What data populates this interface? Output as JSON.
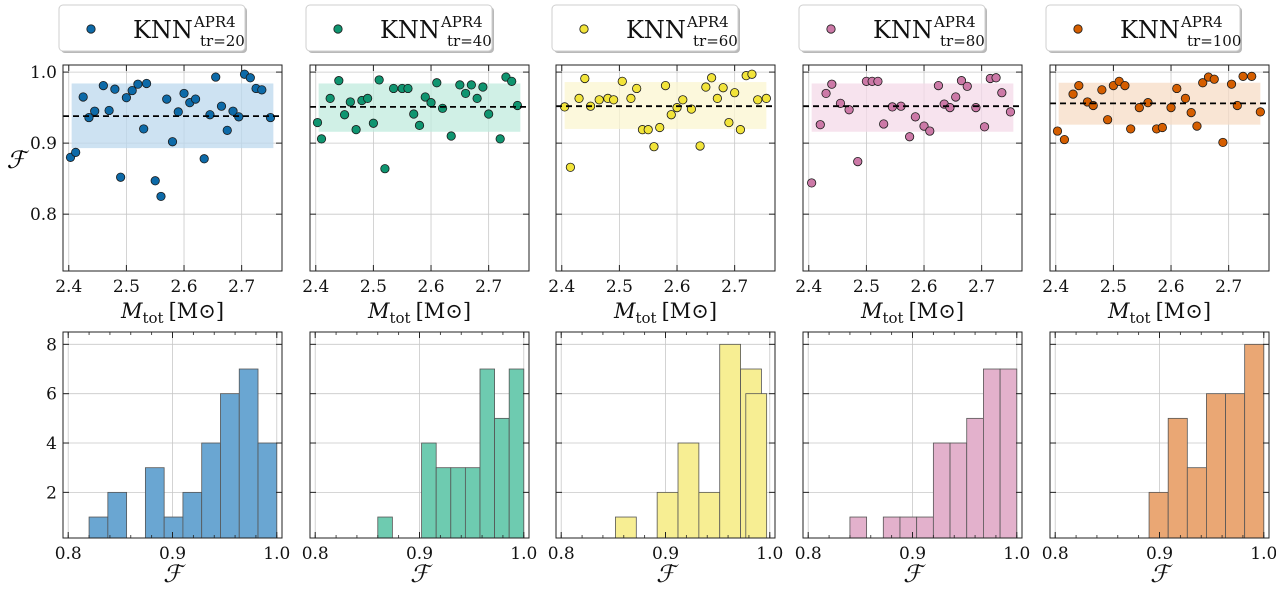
{
  "figure": {
    "y_label_top": "ℱ",
    "x_label_bottom": "ℱ",
    "x_label_top_main": "M",
    "x_label_top_sub": "tot",
    "x_label_top_unit": "[M⊙]"
  },
  "chart_data": [
    {
      "type": "scatter",
      "name": "KNN_tr20_scatter",
      "legend": {
        "base": "KNN",
        "sup": "APR4",
        "sub": "tr=20"
      },
      "color": "#0d6aa8",
      "band_color": "#bcd8ee",
      "xlim": [
        2.39,
        2.77
      ],
      "ylim": [
        0.72,
        1.01
      ],
      "xticks": [
        2.4,
        2.5,
        2.6,
        2.7
      ],
      "xtick_labels": [
        "2.4",
        "2.5",
        "2.6",
        "2.7"
      ],
      "yticks": [
        0.8,
        0.9,
        1.0
      ],
      "ytick_labels": [
        "0.8",
        "0.9",
        "1.0"
      ],
      "mean": 0.938,
      "band": [
        0.893,
        0.984
      ],
      "x": [
        2.403,
        2.412,
        2.425,
        2.435,
        2.445,
        2.46,
        2.47,
        2.48,
        2.49,
        2.5,
        2.51,
        2.52,
        2.53,
        2.535,
        2.55,
        2.56,
        2.57,
        2.58,
        2.59,
        2.6,
        2.61,
        2.62,
        2.635,
        2.645,
        2.655,
        2.665,
        2.675,
        2.685,
        2.695,
        2.705,
        2.715,
        2.725,
        2.735,
        2.75
      ],
      "y": [
        0.88,
        0.887,
        0.965,
        0.936,
        0.945,
        0.981,
        0.946,
        0.976,
        0.852,
        0.964,
        0.974,
        0.983,
        0.92,
        0.984,
        0.847,
        0.825,
        0.962,
        0.902,
        0.944,
        0.97,
        0.957,
        0.962,
        0.878,
        0.94,
        0.993,
        0.952,
        0.918,
        0.945,
        0.937,
        0.997,
        0.992,
        0.977,
        0.975,
        0.936
      ]
    },
    {
      "type": "scatter",
      "name": "KNN_tr40_scatter",
      "legend": {
        "base": "KNN",
        "sup": "APR4",
        "sub": "tr=40"
      },
      "color": "#0f9570",
      "band_color": "#c0ebde",
      "xlim": [
        2.39,
        2.77
      ],
      "ylim": [
        0.72,
        1.01
      ],
      "xticks": [
        2.4,
        2.5,
        2.6,
        2.7
      ],
      "xtick_labels": [
        "2.4",
        "2.5",
        "2.6",
        "2.7"
      ],
      "yticks": [
        0.8,
        0.9,
        1.0
      ],
      "ytick_labels": [
        "",
        "",
        ""
      ],
      "mean": 0.951,
      "band": [
        0.916,
        0.984
      ],
      "x": [
        2.403,
        2.41,
        2.425,
        2.44,
        2.45,
        2.46,
        2.47,
        2.48,
        2.49,
        2.5,
        2.51,
        2.52,
        2.535,
        2.55,
        2.56,
        2.57,
        2.58,
        2.59,
        2.6,
        2.61,
        2.62,
        2.635,
        2.65,
        2.66,
        2.67,
        2.68,
        2.69,
        2.7,
        2.72,
        2.73,
        2.74,
        2.75
      ],
      "y": [
        0.929,
        0.906,
        0.963,
        0.988,
        0.94,
        0.958,
        0.919,
        0.96,
        0.963,
        0.928,
        0.989,
        0.864,
        0.977,
        0.977,
        0.977,
        0.941,
        0.925,
        0.965,
        0.957,
        0.985,
        0.949,
        0.91,
        0.982,
        0.97,
        0.982,
        0.963,
        0.979,
        0.941,
        0.906,
        0.993,
        0.987,
        0.953
      ]
    },
    {
      "type": "scatter",
      "name": "KNN_tr60_scatter",
      "legend": {
        "base": "KNN",
        "sup": "APR4",
        "sub": "tr=60"
      },
      "color": "#f2e43a",
      "band_color": "#fbf6d0",
      "xlim": [
        2.39,
        2.77
      ],
      "ylim": [
        0.72,
        1.01
      ],
      "xticks": [
        2.4,
        2.5,
        2.6,
        2.7
      ],
      "xtick_labels": [
        "2.4",
        "2.5",
        "2.6",
        "2.7"
      ],
      "yticks": [
        0.8,
        0.9,
        1.0
      ],
      "ytick_labels": [
        "",
        "",
        ""
      ],
      "mean": 0.952,
      "band": [
        0.92,
        0.986
      ],
      "x": [
        2.405,
        2.415,
        2.43,
        2.44,
        2.45,
        2.465,
        2.48,
        2.49,
        2.505,
        2.52,
        2.53,
        2.54,
        2.55,
        2.56,
        2.57,
        2.58,
        2.59,
        2.6,
        2.61,
        2.625,
        2.64,
        2.65,
        2.66,
        2.67,
        2.68,
        2.69,
        2.7,
        2.71,
        2.72,
        2.73,
        2.74,
        2.755
      ],
      "y": [
        0.951,
        0.866,
        0.963,
        0.991,
        0.952,
        0.961,
        0.963,
        0.961,
        0.987,
        0.963,
        0.977,
        0.919,
        0.919,
        0.895,
        0.922,
        0.981,
        0.94,
        0.95,
        0.961,
        0.948,
        0.896,
        0.979,
        0.992,
        0.963,
        0.978,
        0.929,
        0.971,
        0.919,
        0.995,
        0.997,
        0.961,
        0.963
      ]
    },
    {
      "type": "scatter",
      "name": "KNN_tr80_scatter",
      "legend": {
        "base": "KNN",
        "sup": "APR4",
        "sub": "tr=80"
      },
      "color": "#cc79a7",
      "band_color": "#f4d9e8",
      "xlim": [
        2.39,
        2.77
      ],
      "ylim": [
        0.72,
        1.01
      ],
      "xticks": [
        2.4,
        2.5,
        2.6,
        2.7
      ],
      "xtick_labels": [
        "2.4",
        "2.5",
        "2.6",
        "2.7"
      ],
      "yticks": [
        0.8,
        0.9,
        1.0
      ],
      "ytick_labels": [
        "",
        "",
        ""
      ],
      "mean": 0.952,
      "band": [
        0.916,
        0.984
      ],
      "x": [
        2.405,
        2.42,
        2.43,
        2.44,
        2.455,
        2.47,
        2.485,
        2.5,
        2.51,
        2.52,
        2.53,
        2.545,
        2.56,
        2.575,
        2.585,
        2.6,
        2.61,
        2.625,
        2.635,
        2.645,
        2.655,
        2.665,
        2.675,
        2.69,
        2.705,
        2.715,
        2.725,
        2.735,
        2.75
      ],
      "y": [
        0.844,
        0.926,
        0.97,
        0.983,
        0.956,
        0.947,
        0.874,
        0.987,
        0.987,
        0.987,
        0.927,
        0.951,
        0.952,
        0.909,
        0.937,
        0.924,
        0.917,
        0.981,
        0.955,
        0.95,
        0.965,
        0.988,
        0.98,
        0.95,
        0.923,
        0.991,
        0.992,
        0.971,
        0.944
      ]
    },
    {
      "type": "scatter",
      "name": "KNN_tr100_scatter",
      "legend": {
        "base": "KNN",
        "sup": "APR4",
        "sub": "tr=100"
      },
      "color": "#d55e00",
      "band_color": "#f7dcc6",
      "xlim": [
        2.39,
        2.77
      ],
      "ylim": [
        0.72,
        1.01
      ],
      "xticks": [
        2.4,
        2.5,
        2.6,
        2.7
      ],
      "xtick_labels": [
        "2.4",
        "2.5",
        "2.6",
        "2.7"
      ],
      "yticks": [
        0.8,
        0.9,
        1.0
      ],
      "ytick_labels": [
        "",
        "",
        ""
      ],
      "mean": 0.956,
      "band": [
        0.926,
        0.985
      ],
      "x": [
        2.403,
        2.415,
        2.43,
        2.44,
        2.455,
        2.465,
        2.48,
        2.49,
        2.5,
        2.51,
        2.52,
        2.53,
        2.545,
        2.56,
        2.575,
        2.585,
        2.6,
        2.61,
        2.625,
        2.635,
        2.645,
        2.655,
        2.665,
        2.675,
        2.69,
        2.705,
        2.715,
        2.725,
        2.74,
        2.755
      ],
      "y": [
        0.917,
        0.905,
        0.969,
        0.981,
        0.958,
        0.953,
        0.975,
        0.933,
        0.981,
        0.987,
        0.981,
        0.92,
        0.95,
        0.957,
        0.92,
        0.922,
        0.95,
        0.977,
        0.963,
        0.943,
        0.924,
        0.985,
        0.993,
        0.99,
        0.901,
        0.983,
        0.953,
        0.994,
        0.994,
        0.944
      ]
    },
    {
      "type": "bar",
      "name": "KNN_tr20_hist",
      "color": "#6aa6d2",
      "xlim": [
        0.795,
        1.005
      ],
      "ylim": [
        0.15,
        8.5
      ],
      "xticks": [
        0.8,
        0.9,
        1.0
      ],
      "xtick_labels": [
        "0.8",
        "0.9",
        "1.0"
      ],
      "yticks": [
        2,
        4,
        6,
        8
      ],
      "ytick_labels": [
        "2",
        "4",
        "6",
        "8"
      ],
      "bin_edges": [
        0.82,
        0.838,
        0.856,
        0.874,
        0.892,
        0.91,
        0.928,
        0.946,
        0.964,
        0.982,
        1.0
      ],
      "counts": [
        1,
        2,
        0,
        3,
        1,
        2,
        4,
        6,
        7,
        4
      ]
    },
    {
      "type": "bar",
      "name": "KNN_tr40_hist",
      "color": "#6ecbb0",
      "xlim": [
        0.795,
        1.005
      ],
      "ylim": [
        0.15,
        8.5
      ],
      "xticks": [
        0.8,
        0.9,
        1.0
      ],
      "xtick_labels": [
        "0.8",
        "0.9",
        "1.0"
      ],
      "yticks": [
        2,
        4,
        6,
        8
      ],
      "ytick_labels": [
        "",
        "",
        "",
        ""
      ],
      "bin_edges": [
        0.86,
        0.874,
        0.888,
        0.902,
        0.916,
        0.93,
        0.944,
        0.958,
        0.972,
        0.986,
        1.0
      ],
      "counts": [
        1,
        0,
        0,
        4,
        3,
        3,
        3,
        7,
        5,
        7
      ]
    },
    {
      "type": "bar",
      "name": "KNN_tr60_hist",
      "color": "#f7ee93",
      "xlim": [
        0.795,
        1.005
      ],
      "ylim": [
        0.15,
        8.5
      ],
      "xticks": [
        0.8,
        0.9,
        1.0
      ],
      "xtick_labels": [
        "0.8",
        "0.9",
        "1.0"
      ],
      "yticks": [
        2,
        4,
        6,
        8
      ],
      "ytick_labels": [
        "",
        "",
        "",
        ""
      ],
      "bin_edges": [
        0.852,
        0.872,
        0.892,
        0.912,
        0.932,
        0.952,
        0.972,
        0.992
      ],
      "counts": [
        1,
        0,
        2,
        4,
        2,
        8,
        7
      ],
      "extra_bars": [
        {
          "x0": 0.977,
          "x1": 0.997,
          "count": 6
        }
      ]
    },
    {
      "type": "bar",
      "name": "KNN_tr80_hist",
      "color": "#e3b1cc",
      "xlim": [
        0.795,
        1.005
      ],
      "ylim": [
        0.15,
        8.5
      ],
      "xticks": [
        0.8,
        0.9,
        1.0
      ],
      "xtick_labels": [
        "0.8",
        "0.9",
        "1.0"
      ],
      "yticks": [
        2,
        4,
        6,
        8
      ],
      "ytick_labels": [
        "",
        "",
        "",
        ""
      ],
      "bin_edges": [
        0.84,
        0.856,
        0.872,
        0.888,
        0.904,
        0.92,
        0.936,
        0.952,
        0.968,
        0.984,
        1.0
      ],
      "counts": [
        1,
        0,
        1,
        1,
        1,
        4,
        4,
        5,
        7,
        7
      ]
    },
    {
      "type": "bar",
      "name": "KNN_tr100_hist",
      "color": "#eaa774",
      "xlim": [
        0.795,
        1.005
      ],
      "ylim": [
        0.15,
        8.5
      ],
      "xticks": [
        0.8,
        0.9,
        1.0
      ],
      "xtick_labels": [
        "0.8",
        "0.9",
        "1.0"
      ],
      "yticks": [
        2,
        4,
        6,
        8
      ],
      "ytick_labels": [
        "",
        "",
        "",
        ""
      ],
      "bin_edges": [
        0.89,
        0.90833,
        0.92667,
        0.945,
        0.96333,
        0.98167,
        1.0
      ],
      "counts": [
        2,
        5,
        3,
        6,
        6,
        8
      ]
    }
  ]
}
